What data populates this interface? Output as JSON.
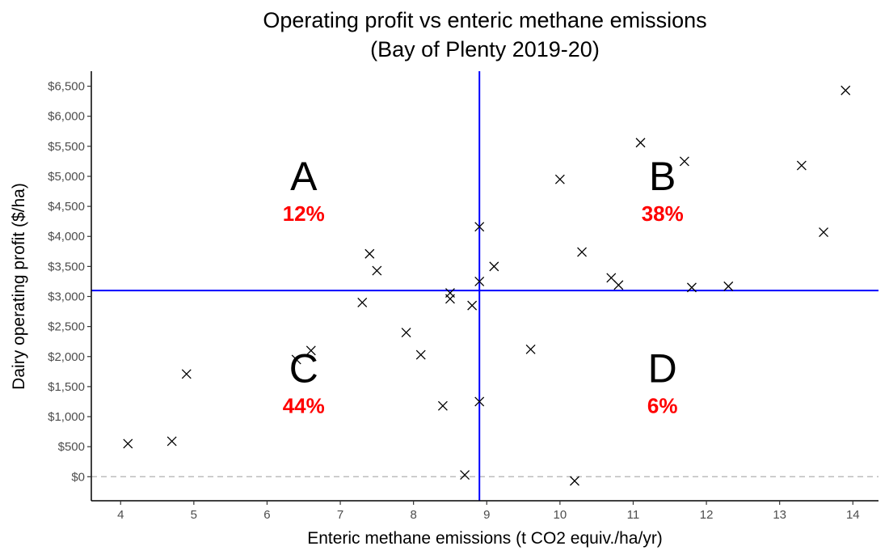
{
  "chart_data": {
    "type": "scatter",
    "title": "Operating profit vs enteric methane emissions",
    "subtitle": "(Bay of Plenty 2019-20)",
    "xlabel": "Enteric methane emissions (t CO2 equiv./ha/yr)",
    "ylabel": "Dairy operating profit ($/ha)",
    "xlim": [
      3.6,
      14.35
    ],
    "ylim": [
      -400,
      6750
    ],
    "x_ticks": [
      4,
      5,
      6,
      7,
      8,
      9,
      10,
      11,
      12,
      13,
      14
    ],
    "x_tick_labels": [
      "4",
      "5",
      "6",
      "7",
      "8",
      "9",
      "10",
      "11",
      "12",
      "13",
      "14"
    ],
    "y_ticks": [
      0,
      500,
      1000,
      1500,
      2000,
      2500,
      3000,
      3500,
      4000,
      4500,
      5000,
      5500,
      6000,
      6500
    ],
    "y_tick_labels": [
      "$0",
      "$500",
      "$1,000",
      "$1,500",
      "$2,000",
      "$2,500",
      "$3,000",
      "$3,500",
      "$4,000",
      "$4,500",
      "$5,000",
      "$5,500",
      "$6,000",
      "$6,500"
    ],
    "grid": false,
    "marker": "x",
    "marker_color": "#000000",
    "points": [
      {
        "x": 4.1,
        "y": 550
      },
      {
        "x": 4.7,
        "y": 590
      },
      {
        "x": 4.9,
        "y": 1710
      },
      {
        "x": 6.4,
        "y": 1950
      },
      {
        "x": 6.6,
        "y": 2100
      },
      {
        "x": 7.3,
        "y": 2900
      },
      {
        "x": 7.4,
        "y": 3710
      },
      {
        "x": 7.5,
        "y": 3430
      },
      {
        "x": 7.9,
        "y": 2400
      },
      {
        "x": 8.1,
        "y": 2030
      },
      {
        "x": 8.4,
        "y": 1180
      },
      {
        "x": 8.5,
        "y": 3060
      },
      {
        "x": 8.5,
        "y": 2960
      },
      {
        "x": 8.7,
        "y": 30
      },
      {
        "x": 8.8,
        "y": 2850
      },
      {
        "x": 8.9,
        "y": 4160
      },
      {
        "x": 8.9,
        "y": 3250
      },
      {
        "x": 8.9,
        "y": 1250
      },
      {
        "x": 9.1,
        "y": 3500
      },
      {
        "x": 9.6,
        "y": 2120
      },
      {
        "x": 10.0,
        "y": 4950
      },
      {
        "x": 10.2,
        "y": -70
      },
      {
        "x": 10.3,
        "y": 3740
      },
      {
        "x": 10.7,
        "y": 3310
      },
      {
        "x": 10.8,
        "y": 3190
      },
      {
        "x": 11.1,
        "y": 5560
      },
      {
        "x": 11.7,
        "y": 5250
      },
      {
        "x": 11.8,
        "y": 3150
      },
      {
        "x": 12.3,
        "y": 3170
      },
      {
        "x": 13.3,
        "y": 5180
      },
      {
        "x": 13.6,
        "y": 4070
      },
      {
        "x": 13.9,
        "y": 6430
      }
    ],
    "reference_lines": {
      "vertical_x": 8.9,
      "horizontal_y": 3100,
      "zero_line_y": 0,
      "line_color": "#0000ff",
      "zero_line_color": "#bdbdbd"
    },
    "quadrants": [
      {
        "letter": "A",
        "percent": "12%",
        "x": 6.5,
        "y": 5000
      },
      {
        "letter": "B",
        "percent": "38%",
        "x": 11.4,
        "y": 5000
      },
      {
        "letter": "C",
        "percent": "44%",
        "x": 6.5,
        "y": 1800
      },
      {
        "letter": "D",
        "percent": "6%",
        "x": 11.4,
        "y": 1800
      }
    ],
    "percent_color": "#ff0000"
  }
}
